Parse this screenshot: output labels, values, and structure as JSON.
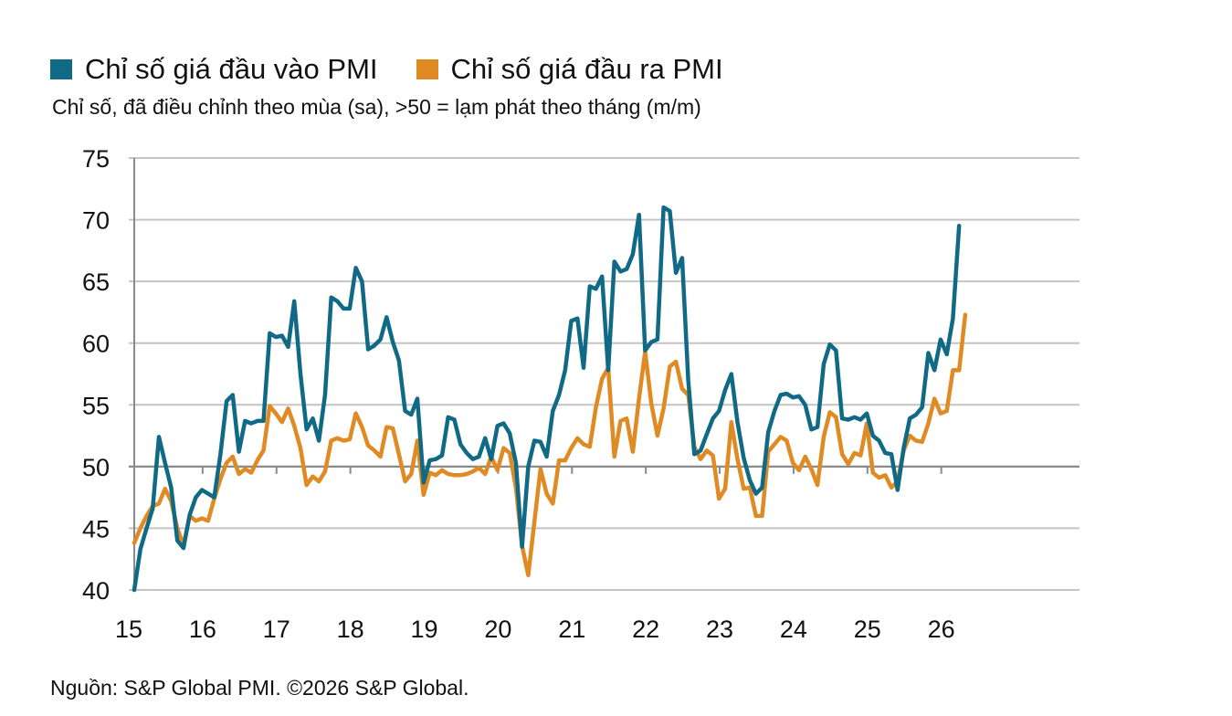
{
  "legend": [
    {
      "label": "Chỉ số giá đầu vào PMI",
      "color": "#116A85"
    },
    {
      "label": "Chỉ số giá đầu ra PMI",
      "color": "#E08A24"
    }
  ],
  "subtitle": "Chỉ số, đã điều chỉnh theo mùa (sa), >50 = lạm phát theo tháng (m/m)",
  "footer": "Nguồn: S&P Global PMI. ©2026 S&P Global.",
  "chart_data": {
    "type": "line",
    "title": "",
    "xlabel": "",
    "ylabel": "Chỉ số, đã điều chỉnh theo mùa (sa), >50 = lạm phát theo tháng (m/m)",
    "x_start": "2015-01",
    "frequency": "monthly",
    "x_tick_labels": [
      "15",
      "16",
      "17",
      "18",
      "19",
      "20",
      "21",
      "22",
      "23",
      "24",
      "25",
      "26"
    ],
    "y_ticks": [
      40,
      45,
      50,
      55,
      60,
      65,
      70,
      75
    ],
    "ylim": [
      40,
      75
    ],
    "grid": true,
    "baseline": 50,
    "legend_position": "top-left",
    "series": [
      {
        "name": "Chỉ số giá đầu vào PMI",
        "color": "#116A85",
        "values": [
          40.0,
          43.3,
          45.0,
          46.6,
          52.4,
          50.3,
          48.3,
          44.0,
          43.4,
          46.1,
          47.5,
          48.1,
          47.8,
          47.5,
          51.0,
          55.3,
          55.8,
          51.2,
          53.7,
          53.5,
          53.7,
          53.7,
          60.8,
          60.5,
          60.6,
          59.7,
          63.4,
          57.5,
          53.0,
          53.9,
          52.1,
          55.8,
          63.7,
          63.4,
          62.8,
          62.8,
          66.1,
          65.0,
          59.5,
          59.8,
          60.3,
          62.1,
          60.1,
          58.6,
          54.5,
          54.2,
          55.5,
          48.7,
          50.5,
          50.6,
          50.9,
          54.0,
          53.8,
          51.8,
          51.1,
          50.6,
          50.8,
          52.3,
          50.6,
          53.3,
          53.5,
          52.7,
          50.3,
          43.5,
          50.0,
          52.1,
          52.0,
          50.8,
          54.5,
          55.8,
          57.8,
          61.8,
          62.0,
          58.0,
          64.6,
          64.4,
          65.4,
          57.8,
          66.6,
          65.8,
          66.0,
          67.2,
          70.4,
          59.4,
          60.1,
          60.3,
          71.0,
          70.7,
          65.7,
          66.9,
          57.0,
          51.0,
          51.3,
          52.6,
          53.9,
          54.5,
          56.2,
          57.5,
          53.6,
          50.7,
          48.9,
          47.8,
          48.3,
          52.8,
          54.5,
          55.8,
          55.9,
          55.6,
          55.7,
          55.0,
          53.0,
          53.2,
          58.3,
          59.9,
          59.4,
          53.9,
          53.8,
          54.0,
          53.8,
          54.3,
          52.5,
          52.1,
          51.1,
          51.0,
          48.1,
          51.5,
          53.9,
          54.2,
          54.8,
          59.2,
          57.8,
          60.3,
          59.1,
          62.0,
          69.5
        ]
      },
      {
        "name": "Chỉ số giá đầu ra PMI",
        "color": "#E08A24",
        "values": [
          43.8,
          45.0,
          46.0,
          46.8,
          47.0,
          48.2,
          47.2,
          45.0,
          43.6,
          46.0,
          45.6,
          45.8,
          45.6,
          47.4,
          49.0,
          50.3,
          50.8,
          49.4,
          49.8,
          49.5,
          50.5,
          51.3,
          54.9,
          54.3,
          53.6,
          54.7,
          53.3,
          51.5,
          48.5,
          49.2,
          48.8,
          49.6,
          52.1,
          52.3,
          52.1,
          52.2,
          54.3,
          53.2,
          51.7,
          51.3,
          50.8,
          53.2,
          53.1,
          51.0,
          48.8,
          49.4,
          52.1,
          47.7,
          49.5,
          49.3,
          49.7,
          49.4,
          49.3,
          49.3,
          49.4,
          49.6,
          49.9,
          49.4,
          50.8,
          49.7,
          51.5,
          51.1,
          48.3,
          43.6,
          41.2,
          45.5,
          49.8,
          47.8,
          47.0,
          50.5,
          50.5,
          51.5,
          52.3,
          51.8,
          51.6,
          54.8,
          57.1,
          58.0,
          50.8,
          53.7,
          53.9,
          51.2,
          55.5,
          59.3,
          55.1,
          52.5,
          54.7,
          58.1,
          58.5,
          56.3,
          55.8,
          51.6,
          50.6,
          51.3,
          50.9,
          47.4,
          48.2,
          53.6,
          50.6,
          48.2,
          48.3,
          46.0,
          46.0,
          51.2,
          51.8,
          52.4,
          52.1,
          50.3,
          49.7,
          50.8,
          49.8,
          48.5,
          52.4,
          54.4,
          54.0,
          51.0,
          50.2,
          51.1,
          50.9,
          53.5,
          49.5,
          49.1,
          49.3,
          48.3,
          48.8,
          51.3,
          52.5,
          52.1,
          52.0,
          53.5,
          55.5,
          54.3,
          54.5,
          57.8,
          57.8,
          62.3
        ]
      }
    ]
  }
}
